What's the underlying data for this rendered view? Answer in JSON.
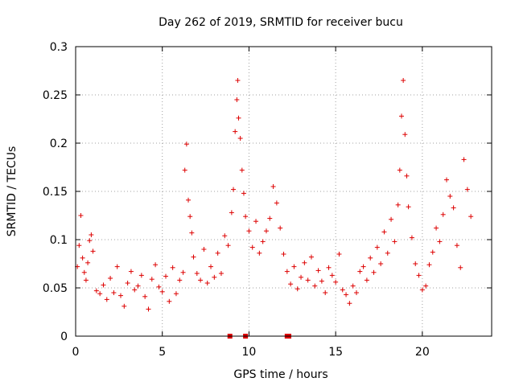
{
  "chart_data": {
    "type": "scatter",
    "title": "Day 262 of 2019, SRMTID for receiver bucu",
    "xlabel": "GPS time / hours",
    "ylabel": "SRMTID / TECUs",
    "xlim": [
      0,
      24
    ],
    "ylim": [
      0,
      0.3
    ],
    "x_ticks": [
      0,
      5,
      10,
      15,
      20
    ],
    "x_tick_labels": [
      "0",
      "5",
      "10",
      "15",
      "20"
    ],
    "y_ticks": [
      0,
      0.05,
      0.1,
      0.15,
      0.2,
      0.25,
      0.3
    ],
    "y_tick_labels": [
      "0",
      "0.05",
      "0.1",
      "0.15",
      "0.2",
      "0.25",
      "0.3"
    ],
    "grid": true,
    "marker": "+",
    "color": "#dd0000",
    "series": [
      {
        "name": "SRMTID",
        "points": [
          [
            0.1,
            0.072
          ],
          [
            0.2,
            0.094
          ],
          [
            0.3,
            0.125
          ],
          [
            0.4,
            0.081
          ],
          [
            0.5,
            0.066
          ],
          [
            0.6,
            0.058
          ],
          [
            0.7,
            0.076
          ],
          [
            0.8,
            0.099
          ],
          [
            0.9,
            0.105
          ],
          [
            1.0,
            0.088
          ],
          [
            1.2,
            0.047
          ],
          [
            1.4,
            0.044
          ],
          [
            1.6,
            0.053
          ],
          [
            1.8,
            0.038
          ],
          [
            2.0,
            0.06
          ],
          [
            2.2,
            0.045
          ],
          [
            2.4,
            0.072
          ],
          [
            2.6,
            0.042
          ],
          [
            2.8,
            0.031
          ],
          [
            3.0,
            0.055
          ],
          [
            3.2,
            0.067
          ],
          [
            3.4,
            0.048
          ],
          [
            3.6,
            0.052
          ],
          [
            3.8,
            0.063
          ],
          [
            4.0,
            0.041
          ],
          [
            4.2,
            0.028
          ],
          [
            4.4,
            0.059
          ],
          [
            4.6,
            0.074
          ],
          [
            4.8,
            0.051
          ],
          [
            5.0,
            0.046
          ],
          [
            5.2,
            0.062
          ],
          [
            5.4,
            0.036
          ],
          [
            5.6,
            0.071
          ],
          [
            5.8,
            0.044
          ],
          [
            6.0,
            0.058
          ],
          [
            6.2,
            0.066
          ],
          [
            6.3,
            0.172
          ],
          [
            6.4,
            0.199
          ],
          [
            6.5,
            0.141
          ],
          [
            6.6,
            0.124
          ],
          [
            6.7,
            0.107
          ],
          [
            6.8,
            0.082
          ],
          [
            7.0,
            0.065
          ],
          [
            7.2,
            0.058
          ],
          [
            7.4,
            0.09
          ],
          [
            7.6,
            0.055
          ],
          [
            7.8,
            0.072
          ],
          [
            8.0,
            0.061
          ],
          [
            8.2,
            0.086
          ],
          [
            8.4,
            0.065
          ],
          [
            8.6,
            0.104
          ],
          [
            8.8,
            0.094
          ],
          [
            9.0,
            0.128
          ],
          [
            9.1,
            0.152
          ],
          [
            9.2,
            0.212
          ],
          [
            9.3,
            0.245
          ],
          [
            9.35,
            0.265
          ],
          [
            9.4,
            0.226
          ],
          [
            9.5,
            0.205
          ],
          [
            9.6,
            0.172
          ],
          [
            9.7,
            0.148
          ],
          [
            9.8,
            0.124
          ],
          [
            10.0,
            0.109
          ],
          [
            10.2,
            0.092
          ],
          [
            10.4,
            0.119
          ],
          [
            10.6,
            0.086
          ],
          [
            10.8,
            0.098
          ],
          [
            11.0,
            0.109
          ],
          [
            11.2,
            0.122
          ],
          [
            11.4,
            0.155
          ],
          [
            11.6,
            0.138
          ],
          [
            11.8,
            0.112
          ],
          [
            12.0,
            0.085
          ],
          [
            12.2,
            0.067
          ],
          [
            12.4,
            0.054
          ],
          [
            12.6,
            0.072
          ],
          [
            12.8,
            0.049
          ],
          [
            13.0,
            0.061
          ],
          [
            13.2,
            0.076
          ],
          [
            13.4,
            0.058
          ],
          [
            13.6,
            0.082
          ],
          [
            13.8,
            0.052
          ],
          [
            14.0,
            0.068
          ],
          [
            14.2,
            0.057
          ],
          [
            14.4,
            0.045
          ],
          [
            14.6,
            0.071
          ],
          [
            14.8,
            0.063
          ],
          [
            15.0,
            0.056
          ],
          [
            15.2,
            0.085
          ],
          [
            15.4,
            0.048
          ],
          [
            15.6,
            0.043
          ],
          [
            15.8,
            0.034
          ],
          [
            16.0,
            0.052
          ],
          [
            16.2,
            0.045
          ],
          [
            16.4,
            0.067
          ],
          [
            16.6,
            0.072
          ],
          [
            16.8,
            0.058
          ],
          [
            17.0,
            0.081
          ],
          [
            17.2,
            0.066
          ],
          [
            17.4,
            0.092
          ],
          [
            17.6,
            0.075
          ],
          [
            17.8,
            0.108
          ],
          [
            18.0,
            0.086
          ],
          [
            18.2,
            0.121
          ],
          [
            18.4,
            0.098
          ],
          [
            18.6,
            0.136
          ],
          [
            18.7,
            0.172
          ],
          [
            18.8,
            0.228
          ],
          [
            18.9,
            0.265
          ],
          [
            19.0,
            0.209
          ],
          [
            19.1,
            0.166
          ],
          [
            19.2,
            0.134
          ],
          [
            19.4,
            0.102
          ],
          [
            19.6,
            0.075
          ],
          [
            19.8,
            0.063
          ],
          [
            20.0,
            0.048
          ],
          [
            20.2,
            0.052
          ],
          [
            20.4,
            0.074
          ],
          [
            20.6,
            0.087
          ],
          [
            20.8,
            0.112
          ],
          [
            21.0,
            0.098
          ],
          [
            21.2,
            0.126
          ],
          [
            21.4,
            0.162
          ],
          [
            21.6,
            0.145
          ],
          [
            21.8,
            0.133
          ],
          [
            22.0,
            0.094
          ],
          [
            22.2,
            0.071
          ],
          [
            22.4,
            0.183
          ],
          [
            22.6,
            0.152
          ],
          [
            22.8,
            0.124
          ]
        ]
      }
    ],
    "missing_data_markers_x": [
      8.9,
      9.8,
      12.2,
      12.3
    ]
  }
}
